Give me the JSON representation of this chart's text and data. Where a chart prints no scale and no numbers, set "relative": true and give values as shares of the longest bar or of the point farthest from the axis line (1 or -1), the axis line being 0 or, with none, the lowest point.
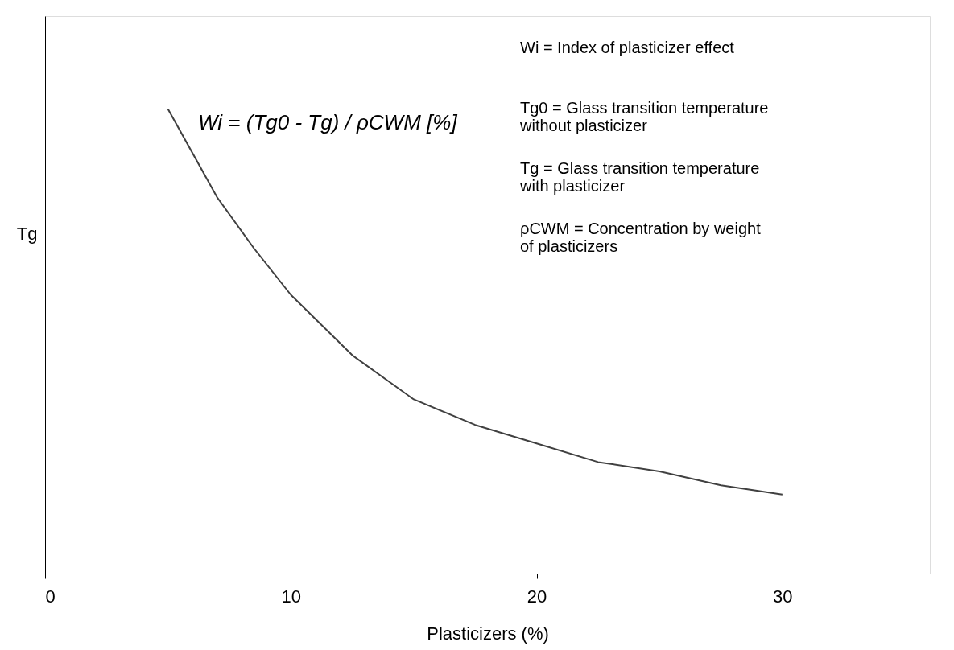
{
  "chart_data": {
    "type": "line",
    "relative": true,
    "xlabel": "Plasticizers (%)",
    "ylabel": "Tg",
    "x": [
      5,
      7,
      8.5,
      10,
      12.5,
      15,
      17.5,
      20,
      22.5,
      25,
      27.5,
      30
    ],
    "series": [
      {
        "color": "#404040",
        "values": [
          1.0,
          0.81,
          0.7,
          0.6,
          0.47,
          0.375,
          0.32,
          0.28,
          0.24,
          0.22,
          0.19,
          0.17
        ]
      }
    ],
    "xlim": [
      0,
      36
    ],
    "xticks": [
      0,
      10,
      20,
      30
    ],
    "tick_labels": "x",
    "grid": false,
    "marker": "none",
    "line_style": "solid",
    "annotations": [
      "Wi = (Tg0 - Tg) / ρCWM [%]",
      "Wi = Index of plasticizer effect",
      "Tg0 = Glass transition temperature without plasticizer",
      "Tg = Glass transition temperature with plasticizer",
      "ρCWM = Concentration by weight of plasticizers"
    ]
  }
}
